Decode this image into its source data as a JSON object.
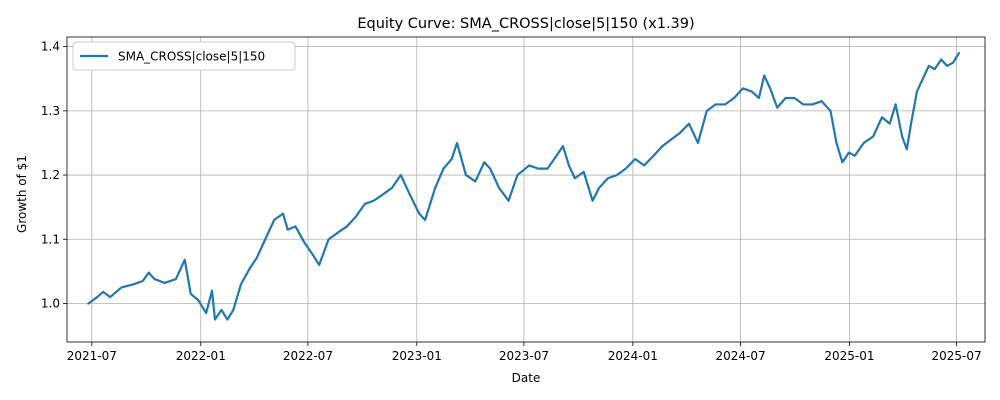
{
  "chart_data": {
    "type": "line",
    "title": "Equity Curve: SMA_CROSS|close|5|150 (x1.39)",
    "xlabel": "Date",
    "ylabel": "Growth of $1",
    "x_range": [
      "2021-05-20",
      "2025-08-18"
    ],
    "ylim": [
      0.94,
      1.415
    ],
    "x_ticks": [
      "2021-07",
      "2022-01",
      "2022-07",
      "2023-01",
      "2023-07",
      "2024-01",
      "2024-07",
      "2025-01",
      "2025-07"
    ],
    "y_ticks": [
      1.0,
      1.1,
      1.2,
      1.3,
      1.4
    ],
    "y_tick_labels": [
      "1.0",
      "1.1",
      "1.2",
      "1.3",
      "1.4"
    ],
    "grid": true,
    "legend_position": "top-left",
    "colors": {
      "line": "#1f77b4",
      "grid": "#b0b0b0",
      "axis": "#000000"
    },
    "series": [
      {
        "name": "SMA_CROSS|close|5|150",
        "x": [
          "2021-06-25",
          "2021-07-10",
          "2021-07-20",
          "2021-08-01",
          "2021-08-20",
          "2021-09-10",
          "2021-09-25",
          "2021-10-05",
          "2021-10-15",
          "2021-11-01",
          "2021-11-20",
          "2021-12-05",
          "2021-12-15",
          "2021-12-28",
          "2022-01-10",
          "2022-01-20",
          "2022-01-25",
          "2022-02-05",
          "2022-02-15",
          "2022-02-25",
          "2022-03-10",
          "2022-03-25",
          "2022-04-05",
          "2022-04-20",
          "2022-05-05",
          "2022-05-20",
          "2022-05-28",
          "2022-06-10",
          "2022-06-25",
          "2022-07-10",
          "2022-07-20",
          "2022-08-05",
          "2022-08-20",
          "2022-09-05",
          "2022-09-20",
          "2022-10-05",
          "2022-10-20",
          "2022-11-05",
          "2022-11-20",
          "2022-12-05",
          "2022-12-20",
          "2023-01-05",
          "2023-01-15",
          "2023-02-01",
          "2023-02-15",
          "2023-03-01",
          "2023-03-10",
          "2023-03-25",
          "2023-04-10",
          "2023-04-25",
          "2023-05-05",
          "2023-05-20",
          "2023-06-05",
          "2023-06-20",
          "2023-07-10",
          "2023-07-25",
          "2023-08-10",
          "2023-08-25",
          "2023-09-05",
          "2023-09-15",
          "2023-09-25",
          "2023-10-10",
          "2023-10-25",
          "2023-11-05",
          "2023-11-20",
          "2023-12-05",
          "2023-12-20",
          "2024-01-05",
          "2024-01-20",
          "2024-02-05",
          "2024-02-20",
          "2024-03-05",
          "2024-03-20",
          "2024-04-05",
          "2024-04-20",
          "2024-05-05",
          "2024-05-20",
          "2024-06-05",
          "2024-06-20",
          "2024-07-05",
          "2024-07-20",
          "2024-08-01",
          "2024-08-10",
          "2024-08-20",
          "2024-09-01",
          "2024-09-15",
          "2024-09-30",
          "2024-10-15",
          "2024-10-30",
          "2024-11-15",
          "2024-11-30",
          "2024-12-10",
          "2024-12-20",
          "2024-12-31",
          "2025-01-10",
          "2025-01-25",
          "2025-02-10",
          "2025-02-25",
          "2025-03-10",
          "2025-03-20",
          "2025-03-31",
          "2025-04-08",
          "2025-04-15",
          "2025-04-25",
          "2025-05-05",
          "2025-05-15",
          "2025-05-25",
          "2025-06-05",
          "2025-06-15",
          "2025-06-25",
          "2025-07-05"
        ],
        "values": [
          1.0,
          1.01,
          1.018,
          1.01,
          1.025,
          1.03,
          1.035,
          1.048,
          1.038,
          1.032,
          1.038,
          1.068,
          1.015,
          1.005,
          0.985,
          1.02,
          0.975,
          0.99,
          0.975,
          0.99,
          1.03,
          1.055,
          1.07,
          1.1,
          1.13,
          1.14,
          1.115,
          1.12,
          1.095,
          1.075,
          1.06,
          1.1,
          1.11,
          1.12,
          1.135,
          1.155,
          1.16,
          1.17,
          1.18,
          1.2,
          1.17,
          1.14,
          1.13,
          1.18,
          1.21,
          1.225,
          1.25,
          1.2,
          1.19,
          1.22,
          1.21,
          1.18,
          1.16,
          1.2,
          1.215,
          1.21,
          1.21,
          1.23,
          1.245,
          1.215,
          1.195,
          1.205,
          1.16,
          1.18,
          1.195,
          1.2,
          1.21,
          1.225,
          1.215,
          1.23,
          1.245,
          1.255,
          1.265,
          1.28,
          1.25,
          1.3,
          1.31,
          1.31,
          1.32,
          1.335,
          1.33,
          1.32,
          1.355,
          1.335,
          1.305,
          1.32,
          1.32,
          1.31,
          1.31,
          1.315,
          1.3,
          1.25,
          1.22,
          1.235,
          1.23,
          1.25,
          1.26,
          1.29,
          1.28,
          1.31,
          1.26,
          1.24,
          1.28,
          1.33,
          1.35,
          1.37,
          1.365,
          1.38,
          1.37,
          1.375,
          1.39
        ]
      }
    ]
  }
}
